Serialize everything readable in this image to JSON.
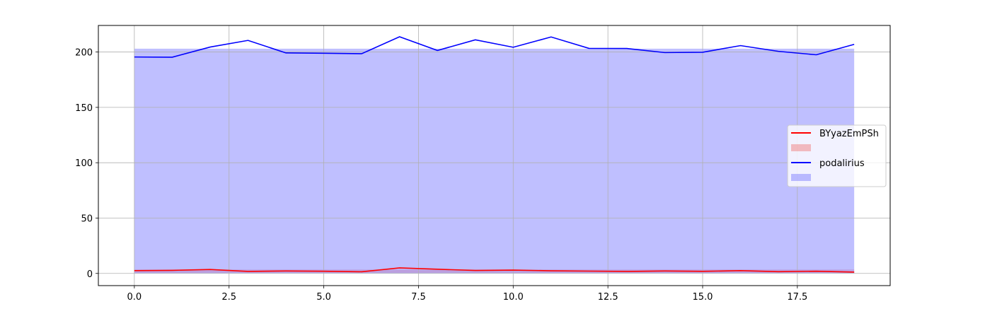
{
  "chart_data": {
    "type": "line",
    "title": "",
    "xlabel": "",
    "ylabel": "",
    "xlim": [
      -0.95,
      19.95
    ],
    "ylim": [
      -11,
      224
    ],
    "x_ticks": [
      0,
      2.5,
      5,
      7.5,
      10,
      12.5,
      15,
      17.5
    ],
    "x_tick_labels": [
      "0.0",
      "2.5",
      "5.0",
      "7.5",
      "10.0",
      "12.5",
      "15.0",
      "17.5"
    ],
    "y_ticks": [
      0,
      50,
      100,
      150,
      200
    ],
    "y_tick_labels": [
      "0",
      "50",
      "100",
      "150",
      "200"
    ],
    "grid": true,
    "legend_position": "center-right",
    "x": [
      0,
      1,
      2,
      3,
      4,
      5,
      6,
      7,
      8,
      9,
      10,
      11,
      12,
      13,
      14,
      15,
      16,
      17,
      18,
      19
    ],
    "series": [
      {
        "name": "BYyazEmPSh",
        "color": "#ff0000",
        "fill_color": "#f08080",
        "values": [
          2.5,
          2.8,
          3.6,
          1.8,
          2.2,
          2.0,
          1.5,
          5.0,
          3.8,
          2.7,
          3.0,
          2.4,
          2.1,
          1.8,
          2.2,
          1.9,
          2.5,
          1.6,
          2.0,
          1.2
        ],
        "band": [
          0.5,
          3.5
        ]
      },
      {
        "name": "podalirius",
        "color": "#0000ff",
        "fill_color": "#8080ff",
        "values": [
          195.5,
          195.3,
          204.5,
          210.5,
          199.2,
          198.9,
          198.5,
          213.8,
          201.4,
          211.0,
          204.3,
          213.6,
          203.3,
          203.2,
          199.5,
          199.8,
          205.8,
          200.6,
          197.5,
          206.9
        ],
        "band": [
          0,
          203
        ]
      }
    ]
  }
}
